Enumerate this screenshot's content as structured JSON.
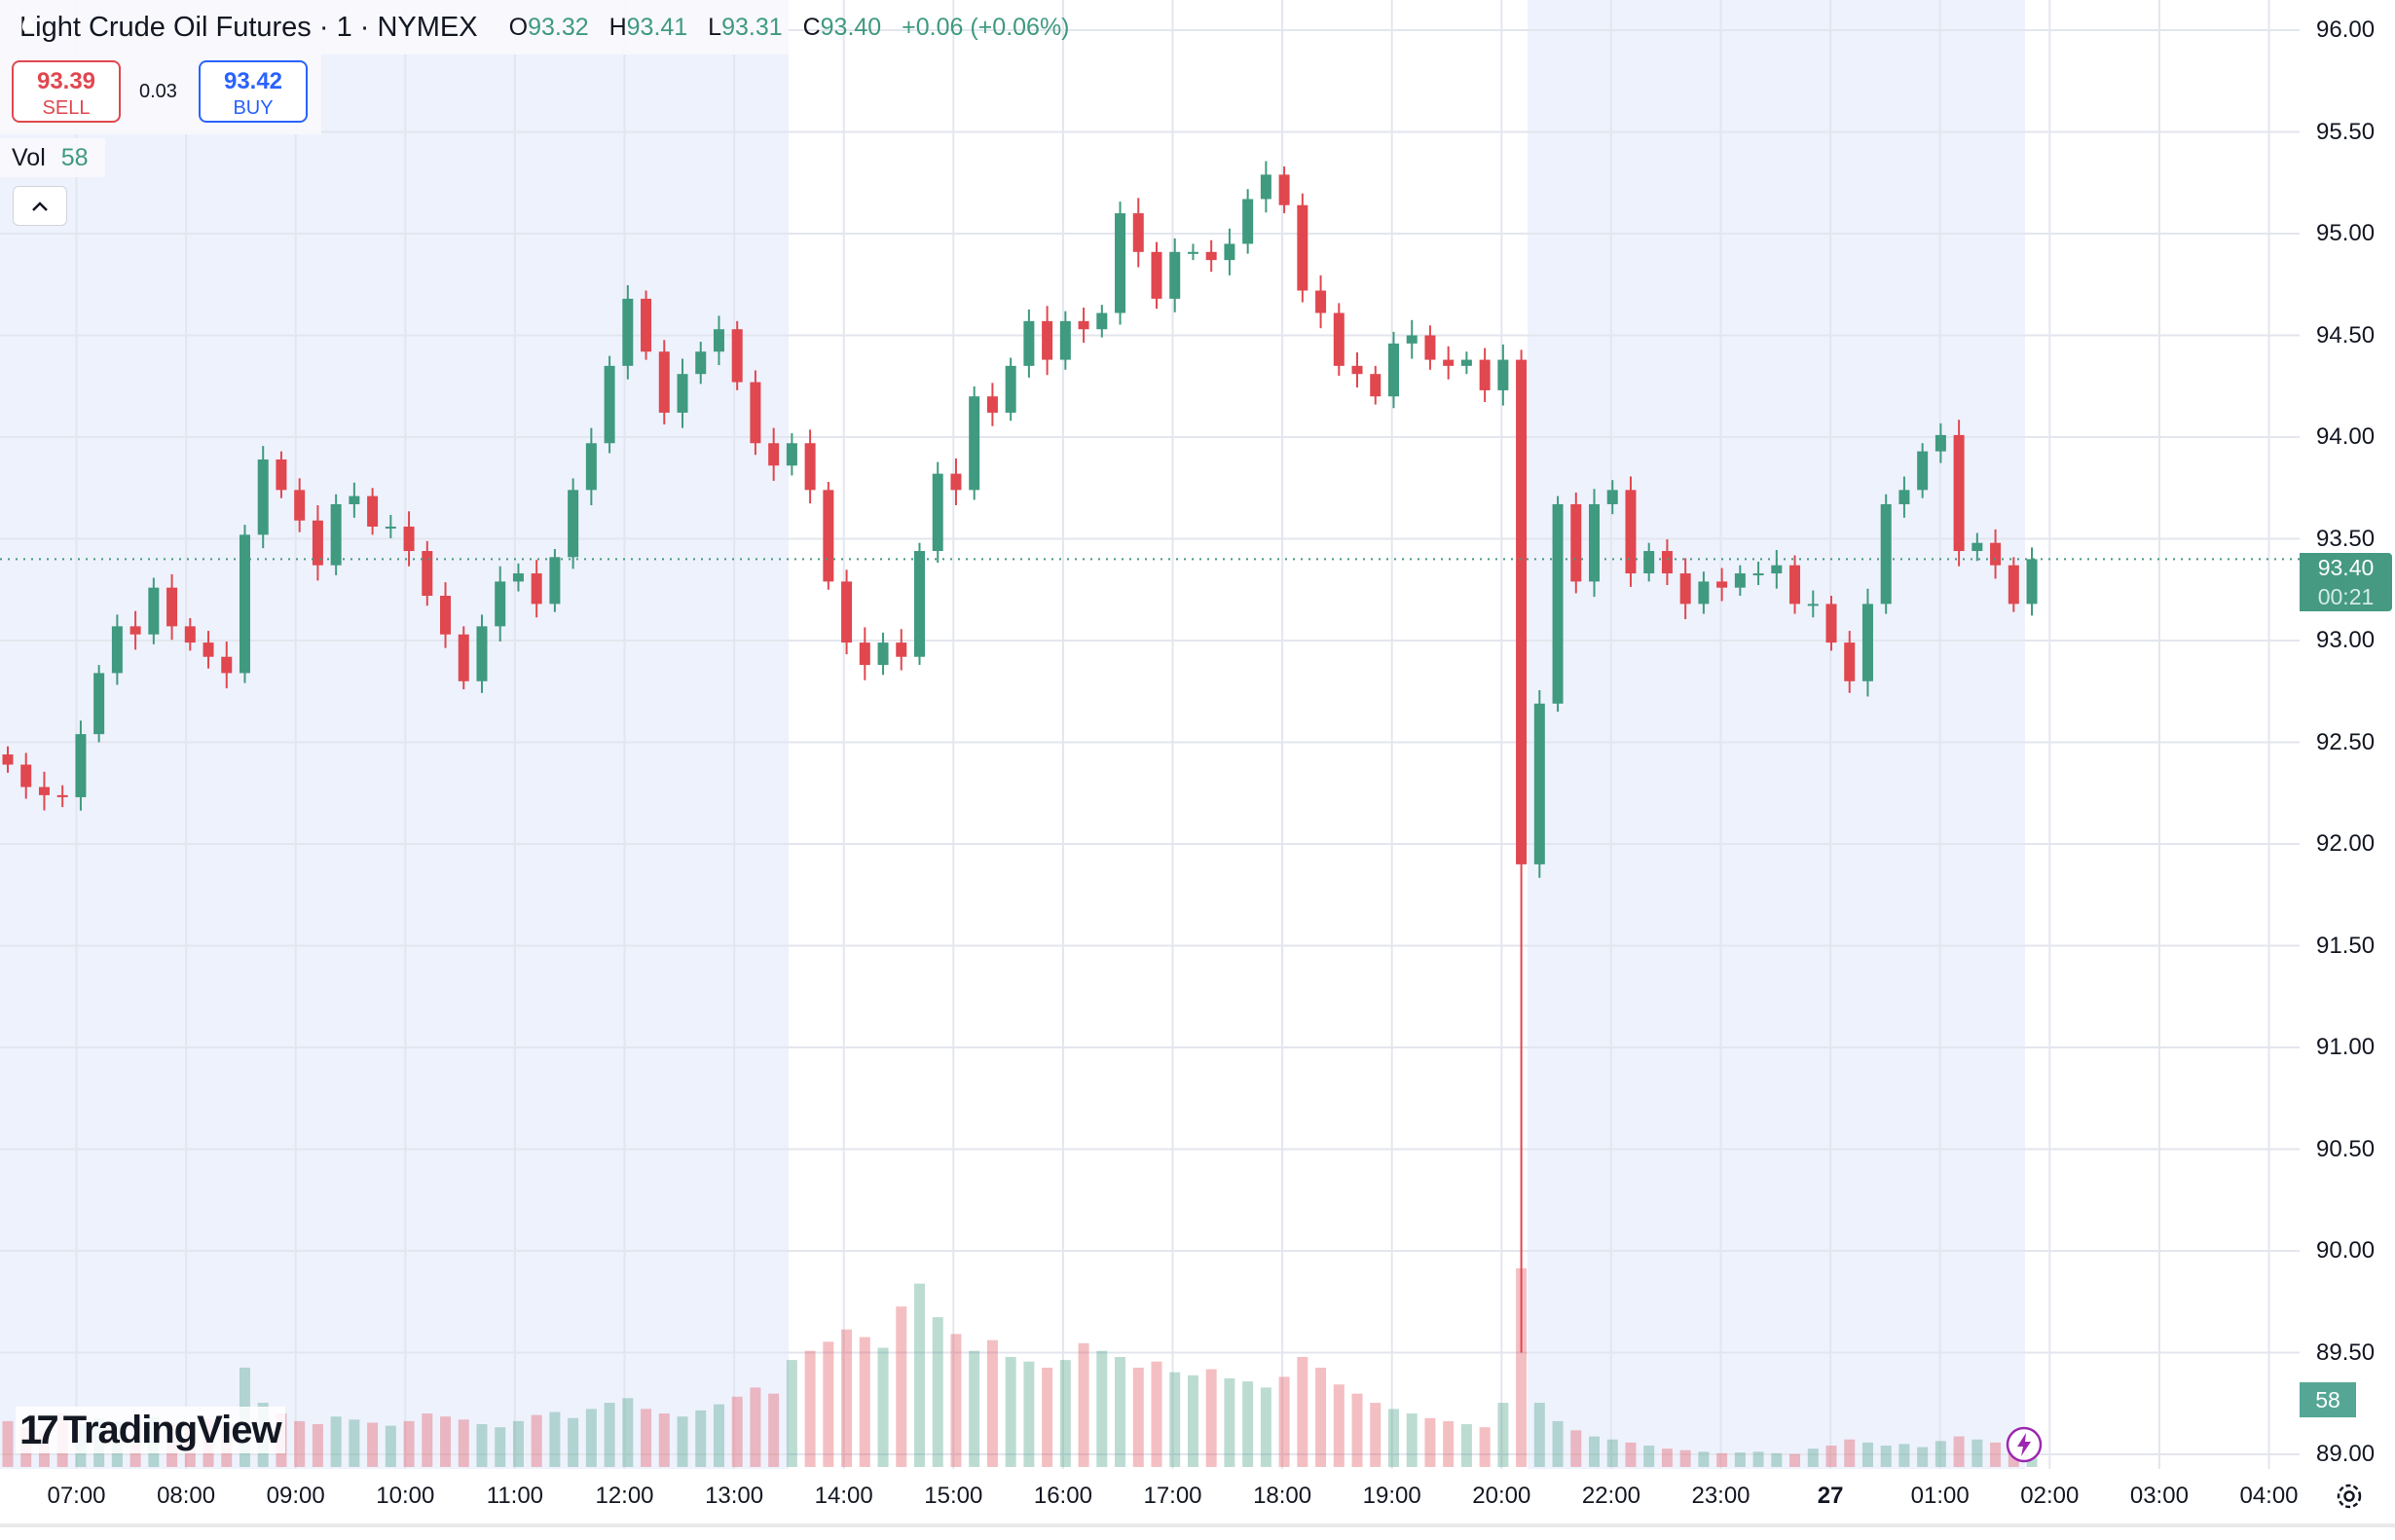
{
  "legend": {
    "symbol_title": "Light Crude Oil Futures · 1 · NYMEX",
    "market_status_badge": "D",
    "ohlc": {
      "o_label": "O",
      "o": "93.32",
      "h_label": "H",
      "h": "93.41",
      "l_label": "L",
      "l": "93.31",
      "c_label": "C",
      "c": "93.40",
      "change": "+0.06 (+0.06%)"
    }
  },
  "trade": {
    "sell_price": "93.39",
    "sell_label": "SELL",
    "spread": "0.03",
    "buy_price": "93.42",
    "buy_label": "BUY"
  },
  "volume_legend": {
    "label": "Vol",
    "value": "58"
  },
  "collapse_button": "^",
  "last_price": {
    "price": "93.40",
    "countdown": "00:21",
    "volume": "58"
  },
  "branding": "TradingView",
  "colors": {
    "up": "#3f9a7f",
    "down": "#e0474f",
    "session_shade": "#eef2fd",
    "last_price": "#459a81",
    "sell": "#e0474f",
    "buy": "#2962ff",
    "bolt": "#9c27b0"
  },
  "icons": [
    "oil-drop-icon",
    "market-open-dot-icon",
    "chevron-up-icon",
    "lightning-icon",
    "settings-gear-icon"
  ],
  "chart_data": {
    "type": "candlestick",
    "price_axis": {
      "ticks": [
        "96.00",
        "95.50",
        "95.00",
        "94.50",
        "94.00",
        "93.50",
        "93.00",
        "92.50",
        "92.00",
        "91.50",
        "91.00",
        "90.50",
        "90.00",
        "89.50",
        "89.00"
      ],
      "range": [
        89.0,
        96.0
      ]
    },
    "time_axis": {
      "ticks": [
        "07:00",
        "08:00",
        "09:00",
        "10:00",
        "11:00",
        "12:00",
        "13:00",
        "14:00",
        "15:00",
        "16:00",
        "17:00",
        "18:00",
        "19:00",
        "20:00",
        "22:00",
        "23:00",
        "27",
        "01:00",
        "02:00",
        "03:00",
        "04:00"
      ],
      "bold": [
        "27"
      ]
    },
    "grid": true,
    "close": [
      92.39,
      92.28,
      92.24,
      92.23,
      92.54,
      92.84,
      93.07,
      93.03,
      93.26,
      93.07,
      92.99,
      92.92,
      92.84,
      93.52,
      93.89,
      93.74,
      93.59,
      93.37,
      93.67,
      93.71,
      93.56,
      93.56,
      93.44,
      93.22,
      93.03,
      92.8,
      93.07,
      93.29,
      93.33,
      93.18,
      93.41,
      93.74,
      93.97,
      94.35,
      94.68,
      94.42,
      94.12,
      94.31,
      94.42,
      94.53,
      94.27,
      93.97,
      93.86,
      93.97,
      93.74,
      93.29,
      92.99,
      92.88,
      92.99,
      92.92,
      93.44,
      93.82,
      93.74,
      94.2,
      94.12,
      94.35,
      94.57,
      94.38,
      94.57,
      94.53,
      94.61,
      95.1,
      94.91,
      94.68,
      94.91,
      94.91,
      94.87,
      94.95,
      95.17,
      95.29,
      95.14,
      94.72,
      94.61,
      94.35,
      94.31,
      94.2,
      94.46,
      94.5,
      94.38,
      94.35,
      94.38,
      94.23,
      94.38,
      91.9,
      92.69,
      93.67,
      93.29,
      93.67,
      93.74,
      93.33,
      93.44,
      93.33,
      93.18,
      93.29,
      93.26,
      93.33,
      93.33,
      93.37,
      93.18,
      93.18,
      92.99,
      92.8,
      93.18,
      93.67,
      93.74,
      93.93,
      94.01,
      93.44,
      93.48,
      93.37,
      93.18,
      93.4
    ],
    "spike": {
      "index": 83,
      "low": 89.5
    },
    "volume": [
      300,
      260,
      240,
      350,
      280,
      320,
      300,
      270,
      330,
      290,
      260,
      310,
      280,
      650,
      420,
      350,
      300,
      280,
      330,
      310,
      290,
      270,
      300,
      350,
      330,
      310,
      280,
      260,
      300,
      340,
      360,
      320,
      380,
      420,
      450,
      380,
      350,
      330,
      370,
      410,
      460,
      520,
      480,
      700,
      760,
      820,
      900,
      850,
      780,
      1050,
      1200,
      980,
      870,
      760,
      830,
      720,
      690,
      650,
      700,
      810,
      760,
      720,
      650,
      690,
      620,
      600,
      640,
      580,
      560,
      520,
      590,
      720,
      650,
      540,
      480,
      420,
      380,
      350,
      320,
      300,
      280,
      260,
      420,
      1300,
      420,
      300,
      240,
      200,
      180,
      160,
      140,
      120,
      110,
      100,
      90,
      95,
      100,
      90,
      85,
      120,
      140,
      180,
      160,
      140,
      150,
      130,
      170,
      200,
      180,
      160,
      120,
      58
    ],
    "last_price_line": 93.4
  }
}
